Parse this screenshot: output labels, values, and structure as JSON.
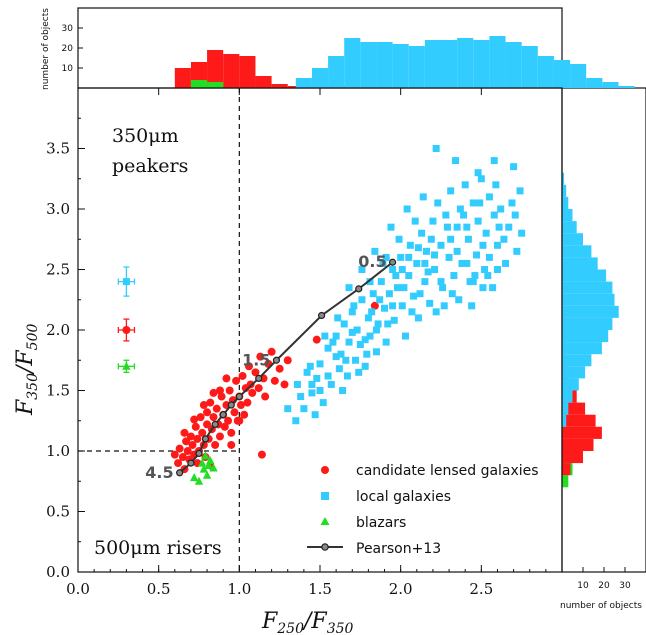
{
  "colors": {
    "lensed": "#ff1a1a",
    "local": "#33ccff",
    "blazar": "#22dd22",
    "track": "#333333"
  },
  "annotations": {
    "peakers_line1": "350μm",
    "peakers_line2": "peakers",
    "risers": "500μm risers"
  },
  "axes": {
    "xlabel_main": "F",
    "xlabel_sub1": "250",
    "xlabel_sub2": "350",
    "ylabel_main": "F",
    "ylabel_sub1": "350",
    "ylabel_sub2": "500",
    "top_hist_label": "number of objects",
    "right_hist_label": "number of objects"
  },
  "legend": {
    "lensed": "candidate lensed galaxies",
    "local": "local galaxies",
    "blazar": "blazars",
    "track": "Pearson+13"
  },
  "chart_data": {
    "type": "scatter",
    "xlim": [
      0,
      3.0
    ],
    "ylim": [
      0,
      4.0
    ],
    "x_ticks": [
      "0.0",
      "0.5",
      "1.0",
      "1.5",
      "2.0",
      "2.5"
    ],
    "x_tick_values": [
      0,
      0.5,
      1.0,
      1.5,
      2.0,
      2.5
    ],
    "y_ticks": [
      "0.0",
      "0.5",
      "1.0",
      "1.5",
      "2.0",
      "2.5",
      "3.0",
      "3.5"
    ],
    "y_tick_values": [
      0,
      0.5,
      1.0,
      1.5,
      2.0,
      2.5,
      3.0,
      3.5
    ],
    "reference_lines": {
      "x": 1.0,
      "y": 1.0
    },
    "series": [
      {
        "name": "candidate lensed galaxies",
        "marker": "circle",
        "points": [
          [
            0.6,
            0.97
          ],
          [
            0.62,
            0.9
          ],
          [
            0.63,
            1.02
          ],
          [
            0.65,
            0.95
          ],
          [
            0.66,
            0.85
          ],
          [
            0.67,
            1.08
          ],
          [
            0.68,
            1.0
          ],
          [
            0.69,
            0.93
          ],
          [
            0.7,
            1.12
          ],
          [
            0.71,
            1.05
          ],
          [
            0.72,
            0.97
          ],
          [
            0.73,
            1.2
          ],
          [
            0.74,
            1.1
          ],
          [
            0.74,
            0.9
          ],
          [
            0.75,
            1.0
          ],
          [
            0.76,
            1.28
          ],
          [
            0.77,
            1.15
          ],
          [
            0.78,
            1.05
          ],
          [
            0.79,
            0.95
          ],
          [
            0.8,
            1.32
          ],
          [
            0.8,
            1.22
          ],
          [
            0.81,
            1.1
          ],
          [
            0.82,
            1.4
          ],
          [
            0.83,
            1.18
          ],
          [
            0.84,
            1.28
          ],
          [
            0.85,
            1.05
          ],
          [
            0.86,
            1.35
          ],
          [
            0.87,
            1.22
          ],
          [
            0.88,
            1.12
          ],
          [
            0.89,
            1.45
          ],
          [
            0.9,
            1.3
          ],
          [
            0.91,
            1.2
          ],
          [
            0.92,
            1.38
          ],
          [
            0.93,
            1.25
          ],
          [
            0.94,
            1.5
          ],
          [
            0.95,
            1.15
          ],
          [
            0.96,
            1.42
          ],
          [
            0.97,
            1.32
          ],
          [
            0.98,
            1.58
          ],
          [
            0.99,
            1.25
          ],
          [
            1.0,
            1.45
          ],
          [
            1.01,
            1.38
          ],
          [
            1.02,
            1.62
          ],
          [
            1.03,
            1.3
          ],
          [
            1.04,
            1.52
          ],
          [
            1.05,
            1.4
          ],
          [
            1.06,
            1.7
          ],
          [
            1.07,
            1.55
          ],
          [
            1.08,
            1.48
          ],
          [
            1.1,
            1.65
          ],
          [
            1.12,
            1.52
          ],
          [
            1.13,
            1.78
          ],
          [
            1.15,
            1.6
          ],
          [
            1.16,
            1.45
          ],
          [
            1.18,
            1.72
          ],
          [
            1.2,
            1.82
          ],
          [
            1.22,
            1.58
          ],
          [
            1.25,
            1.68
          ],
          [
            1.28,
            1.55
          ],
          [
            1.3,
            1.75
          ],
          [
            0.88,
            1.5
          ],
          [
            0.84,
            1.48
          ],
          [
            0.78,
            1.38
          ],
          [
            0.72,
            1.26
          ],
          [
            0.66,
            1.15
          ],
          [
            0.92,
            1.6
          ],
          [
            1.14,
            0.97
          ],
          [
            1.0,
            1.25
          ],
          [
            0.95,
            1.05
          ],
          [
            1.48,
            1.92
          ],
          [
            1.84,
            2.2
          ],
          [
            0.82,
            0.88
          ]
        ]
      },
      {
        "name": "local galaxies",
        "marker": "square",
        "points": [
          [
            1.35,
            1.25
          ],
          [
            1.4,
            1.35
          ],
          [
            1.45,
            1.48
          ],
          [
            1.48,
            1.6
          ],
          [
            1.5,
            1.72
          ],
          [
            1.52,
            1.4
          ],
          [
            1.55,
            1.85
          ],
          [
            1.57,
            1.55
          ],
          [
            1.6,
            1.95
          ],
          [
            1.62,
            1.68
          ],
          [
            1.63,
            1.8
          ],
          [
            1.65,
            2.05
          ],
          [
            1.67,
            1.62
          ],
          [
            1.68,
            1.9
          ],
          [
            1.7,
            2.15
          ],
          [
            1.72,
            1.75
          ],
          [
            1.73,
            2.0
          ],
          [
            1.75,
            1.88
          ],
          [
            1.76,
            2.25
          ],
          [
            1.78,
            1.7
          ],
          [
            1.8,
            2.1
          ],
          [
            1.81,
            1.95
          ],
          [
            1.83,
            2.3
          ],
          [
            1.85,
            1.82
          ],
          [
            1.86,
            2.05
          ],
          [
            1.88,
            2.4
          ],
          [
            1.9,
            2.18
          ],
          [
            1.91,
            1.9
          ],
          [
            1.93,
            2.3
          ],
          [
            1.95,
            2.5
          ],
          [
            1.96,
            2.08
          ],
          [
            1.98,
            2.35
          ],
          [
            2.0,
            2.6
          ],
          [
            2.01,
            2.2
          ],
          [
            2.03,
            1.95
          ],
          [
            2.05,
            2.45
          ],
          [
            2.06,
            2.7
          ],
          [
            2.08,
            2.28
          ],
          [
            2.1,
            2.55
          ],
          [
            2.11,
            2.1
          ],
          [
            2.13,
            2.8
          ],
          [
            2.15,
            2.4
          ],
          [
            2.16,
            2.65
          ],
          [
            2.18,
            2.22
          ],
          [
            2.2,
            2.9
          ],
          [
            2.21,
            2.5
          ],
          [
            2.23,
            3.05
          ],
          [
            2.25,
            2.7
          ],
          [
            2.26,
            2.35
          ],
          [
            2.28,
            2.95
          ],
          [
            2.3,
            2.6
          ],
          [
            2.31,
            3.15
          ],
          [
            2.33,
            2.45
          ],
          [
            2.35,
            2.85
          ],
          [
            2.37,
            3.0
          ],
          [
            2.38,
            2.55
          ],
          [
            2.4,
            3.2
          ],
          [
            2.42,
            2.75
          ],
          [
            2.43,
            2.4
          ],
          [
            2.45,
            3.05
          ],
          [
            2.47,
            2.62
          ],
          [
            2.48,
            2.9
          ],
          [
            2.5,
            3.25
          ],
          [
            2.52,
            2.5
          ],
          [
            2.53,
            2.8
          ],
          [
            2.55,
            3.1
          ],
          [
            2.57,
            2.35
          ],
          [
            2.58,
            2.95
          ],
          [
            2.6,
            2.7
          ],
          [
            2.62,
            3.0
          ],
          [
            2.65,
            2.55
          ],
          [
            2.67,
            2.85
          ],
          [
            2.7,
            3.35
          ],
          [
            2.72,
            2.65
          ],
          [
            2.75,
            2.8
          ],
          [
            2.22,
            3.5
          ],
          [
            1.45,
            1.55
          ],
          [
            1.5,
            1.5
          ],
          [
            1.58,
            1.9
          ],
          [
            1.66,
            1.75
          ],
          [
            1.74,
            1.65
          ],
          [
            1.82,
            2.15
          ],
          [
            1.87,
            2.25
          ],
          [
            1.92,
            2.05
          ],
          [
            1.97,
            2.45
          ],
          [
            2.02,
            2.35
          ],
          [
            2.07,
            2.15
          ],
          [
            2.12,
            2.3
          ],
          [
            2.17,
            2.48
          ],
          [
            2.22,
            2.15
          ],
          [
            2.27,
            2.2
          ],
          [
            2.32,
            2.3
          ],
          [
            2.36,
            2.25
          ],
          [
            2.41,
            2.55
          ],
          [
            2.46,
            2.45
          ],
          [
            2.51,
            2.35
          ],
          [
            1.42,
            1.65
          ],
          [
            1.55,
            1.62
          ],
          [
            1.6,
            1.78
          ],
          [
            1.7,
            1.98
          ],
          [
            1.78,
            1.92
          ],
          [
            1.85,
            2.0
          ],
          [
            1.95,
            2.2
          ],
          [
            2.05,
            2.6
          ],
          [
            2.15,
            2.55
          ],
          [
            2.25,
            2.4
          ],
          [
            2.35,
            2.65
          ],
          [
            2.45,
            2.4
          ],
          [
            2.55,
            2.6
          ],
          [
            2.6,
            2.5
          ],
          [
            1.38,
            1.45
          ],
          [
            1.47,
            1.3
          ],
          [
            1.64,
            1.5
          ],
          [
            1.79,
            1.8
          ],
          [
            1.89,
            2.55
          ],
          [
            1.99,
            2.75
          ],
          [
            2.09,
            2.9
          ],
          [
            2.19,
            2.75
          ],
          [
            2.29,
            2.85
          ],
          [
            2.39,
            2.95
          ],
          [
            2.49,
            3.05
          ],
          [
            2.59,
            3.2
          ],
          [
            2.69,
            3.05
          ],
          [
            1.53,
            1.95
          ],
          [
            1.61,
            2.1
          ],
          [
            1.71,
            2.2
          ],
          [
            1.81,
            2.4
          ],
          [
            1.91,
            2.6
          ],
          [
            2.01,
            2.5
          ],
          [
            2.11,
            2.68
          ],
          [
            2.21,
            2.62
          ],
          [
            2.31,
            2.75
          ],
          [
            2.41,
            2.85
          ],
          [
            2.51,
            2.7
          ],
          [
            2.61,
            2.85
          ],
          [
            2.71,
            2.95
          ],
          [
            1.3,
            1.35
          ],
          [
            1.36,
            1.55
          ],
          [
            1.44,
            1.7
          ],
          [
            2.44,
            2.2
          ],
          [
            2.54,
            2.45
          ],
          [
            2.64,
            2.75
          ],
          [
            2.74,
            3.15
          ],
          [
            2.34,
            3.4
          ],
          [
            2.48,
            3.3
          ],
          [
            2.58,
            3.4
          ],
          [
            1.68,
            2.35
          ],
          [
            1.76,
            2.5
          ],
          [
            1.84,
            2.65
          ],
          [
            1.94,
            2.85
          ],
          [
            2.04,
            3.0
          ],
          [
            2.14,
            3.1
          ]
        ]
      },
      {
        "name": "blazars",
        "marker": "triangle",
        "points": [
          [
            0.72,
            0.78
          ],
          [
            0.75,
            0.75
          ],
          [
            0.78,
            0.85
          ],
          [
            0.8,
            0.8
          ],
          [
            0.82,
            0.92
          ],
          [
            0.84,
            0.86
          ],
          [
            0.77,
            0.9
          ],
          [
            0.79,
            0.96
          ],
          [
            0.81,
            0.88
          ]
        ]
      }
    ],
    "track": {
      "name": "Pearson+13",
      "points": [
        [
          1.95,
          2.56
        ],
        [
          1.74,
          2.34
        ],
        [
          1.51,
          2.12
        ],
        [
          1.23,
          1.75
        ],
        [
          1.12,
          1.6
        ],
        [
          1.0,
          1.45
        ],
        [
          0.95,
          1.38
        ],
        [
          0.9,
          1.3
        ],
        [
          0.85,
          1.22
        ],
        [
          0.79,
          1.1
        ],
        [
          0.75,
          0.98
        ],
        [
          0.7,
          0.9
        ],
        [
          0.63,
          0.82
        ]
      ],
      "labels": [
        {
          "text": "0.5",
          "x": 1.95,
          "y": 2.56
        },
        {
          "text": "1.5",
          "x": 1.23,
          "y": 1.75
        },
        {
          "text": "4.5",
          "x": 0.63,
          "y": 0.82
        }
      ]
    },
    "error_bars": [
      {
        "series": "local galaxies",
        "x": 0.3,
        "y": 2.4,
        "xerr": 0.05,
        "yerr": 0.12
      },
      {
        "series": "candidate lensed galaxies",
        "x": 0.3,
        "y": 2.0,
        "xerr": 0.05,
        "yerr": 0.09
      },
      {
        "series": "blazars",
        "x": 0.3,
        "y": 1.7,
        "xerr": 0.05,
        "yerr": 0.05
      }
    ],
    "top_histogram": {
      "ylim": [
        0,
        40
      ],
      "y_ticks": [
        "10",
        "20",
        "30"
      ],
      "y_tick_values": [
        10,
        20,
        30
      ],
      "bin_width": 0.1,
      "series": [
        {
          "name": "candidate lensed galaxies",
          "bin_start": 0.6,
          "counts": [
            10,
            13,
            19,
            17,
            16,
            6,
            2,
            1,
            1,
            1,
            1,
            0,
            0,
            0
          ]
        },
        {
          "name": "blazars",
          "bin_start": 0.7,
          "counts": [
            4,
            3
          ]
        },
        {
          "name": "local galaxies",
          "bin_start": 1.35,
          "counts": [
            5,
            10,
            16,
            25,
            23,
            23,
            22,
            21,
            24,
            24,
            25,
            24,
            26,
            23,
            21,
            16,
            14,
            12,
            5,
            3,
            1
          ]
        }
      ]
    },
    "right_histogram": {
      "xlim": [
        0,
        40
      ],
      "x_ticks": [
        "10",
        "20",
        "30"
      ],
      "x_tick_values": [
        10,
        20,
        30
      ],
      "bin_width": 0.1,
      "series": [
        {
          "name": "blazars",
          "bin_start": 0.7,
          "counts": [
            3,
            5
          ]
        },
        {
          "name": "candidate lensed galaxies",
          "bin_start": 0.8,
          "counts": [
            4,
            10,
            15,
            19,
            16,
            11,
            7,
            5,
            3,
            1,
            1,
            1,
            1,
            1
          ]
        },
        {
          "name": "local galaxies",
          "bin_start": 1.2,
          "counts": [
            2,
            3,
            5,
            8,
            11,
            14,
            19,
            22,
            24,
            27,
            25,
            24,
            21,
            17,
            14,
            10,
            7,
            5,
            3,
            2,
            1
          ]
        }
      ]
    }
  }
}
